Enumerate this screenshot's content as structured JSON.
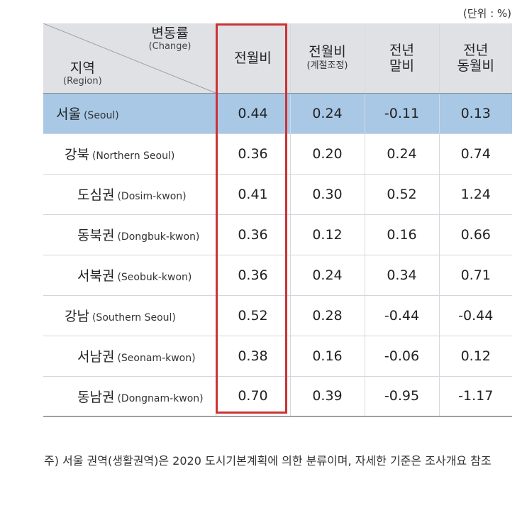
{
  "unit": "(단위 : %)",
  "header": {
    "corner_top_ko": "변동률",
    "corner_top_en": "(Change)",
    "corner_bottom_ko": "지역",
    "corner_bottom_en": "(Region)",
    "col1": "전월비",
    "col2_main": "전월비",
    "col2_sub": "(계절조정)",
    "col3_line1": "전년",
    "col3_line2": "말비",
    "col4_line1": "전년",
    "col4_line2": "동월비"
  },
  "rows": [
    {
      "ko": "서울",
      "en": "(Seoul)",
      "v1": "0.44",
      "v2": "0.24",
      "v3": "-0.11",
      "v4": "0.13"
    },
    {
      "ko": "강북",
      "en": "(Northern Seoul)",
      "v1": "0.36",
      "v2": "0.20",
      "v3": "0.24",
      "v4": "0.74"
    },
    {
      "ko": "도심권",
      "en": "(Dosim-kwon)",
      "v1": "0.41",
      "v2": "0.30",
      "v3": "0.52",
      "v4": "1.24"
    },
    {
      "ko": "동북권",
      "en": "(Dongbuk-kwon)",
      "v1": "0.36",
      "v2": "0.12",
      "v3": "0.16",
      "v4": "0.66"
    },
    {
      "ko": "서북권",
      "en": "(Seobuk-kwon)",
      "v1": "0.36",
      "v2": "0.24",
      "v3": "0.34",
      "v4": "0.71"
    },
    {
      "ko": "강남",
      "en": "(Southern Seoul)",
      "v1": "0.52",
      "v2": "0.28",
      "v3": "-0.44",
      "v4": "-0.44"
    },
    {
      "ko": "서남권",
      "en": "(Seonam-kwon)",
      "v1": "0.38",
      "v2": "0.16",
      "v3": "-0.06",
      "v4": "0.12"
    },
    {
      "ko": "동남권",
      "en": "(Dongnam-kwon)",
      "v1": "0.70",
      "v2": "0.39",
      "v3": "-0.95",
      "v4": "-1.17"
    }
  ],
  "note": "주) 서울 권역(생활권역)은 2020 도시기본계획에 의한 분류이며, 자세한 기준은 조사개요 참조",
  "colors": {
    "header_bg": "#dfe1e5",
    "total_row_bg": "#a8c8e6",
    "highlight_border": "#cc3333"
  }
}
